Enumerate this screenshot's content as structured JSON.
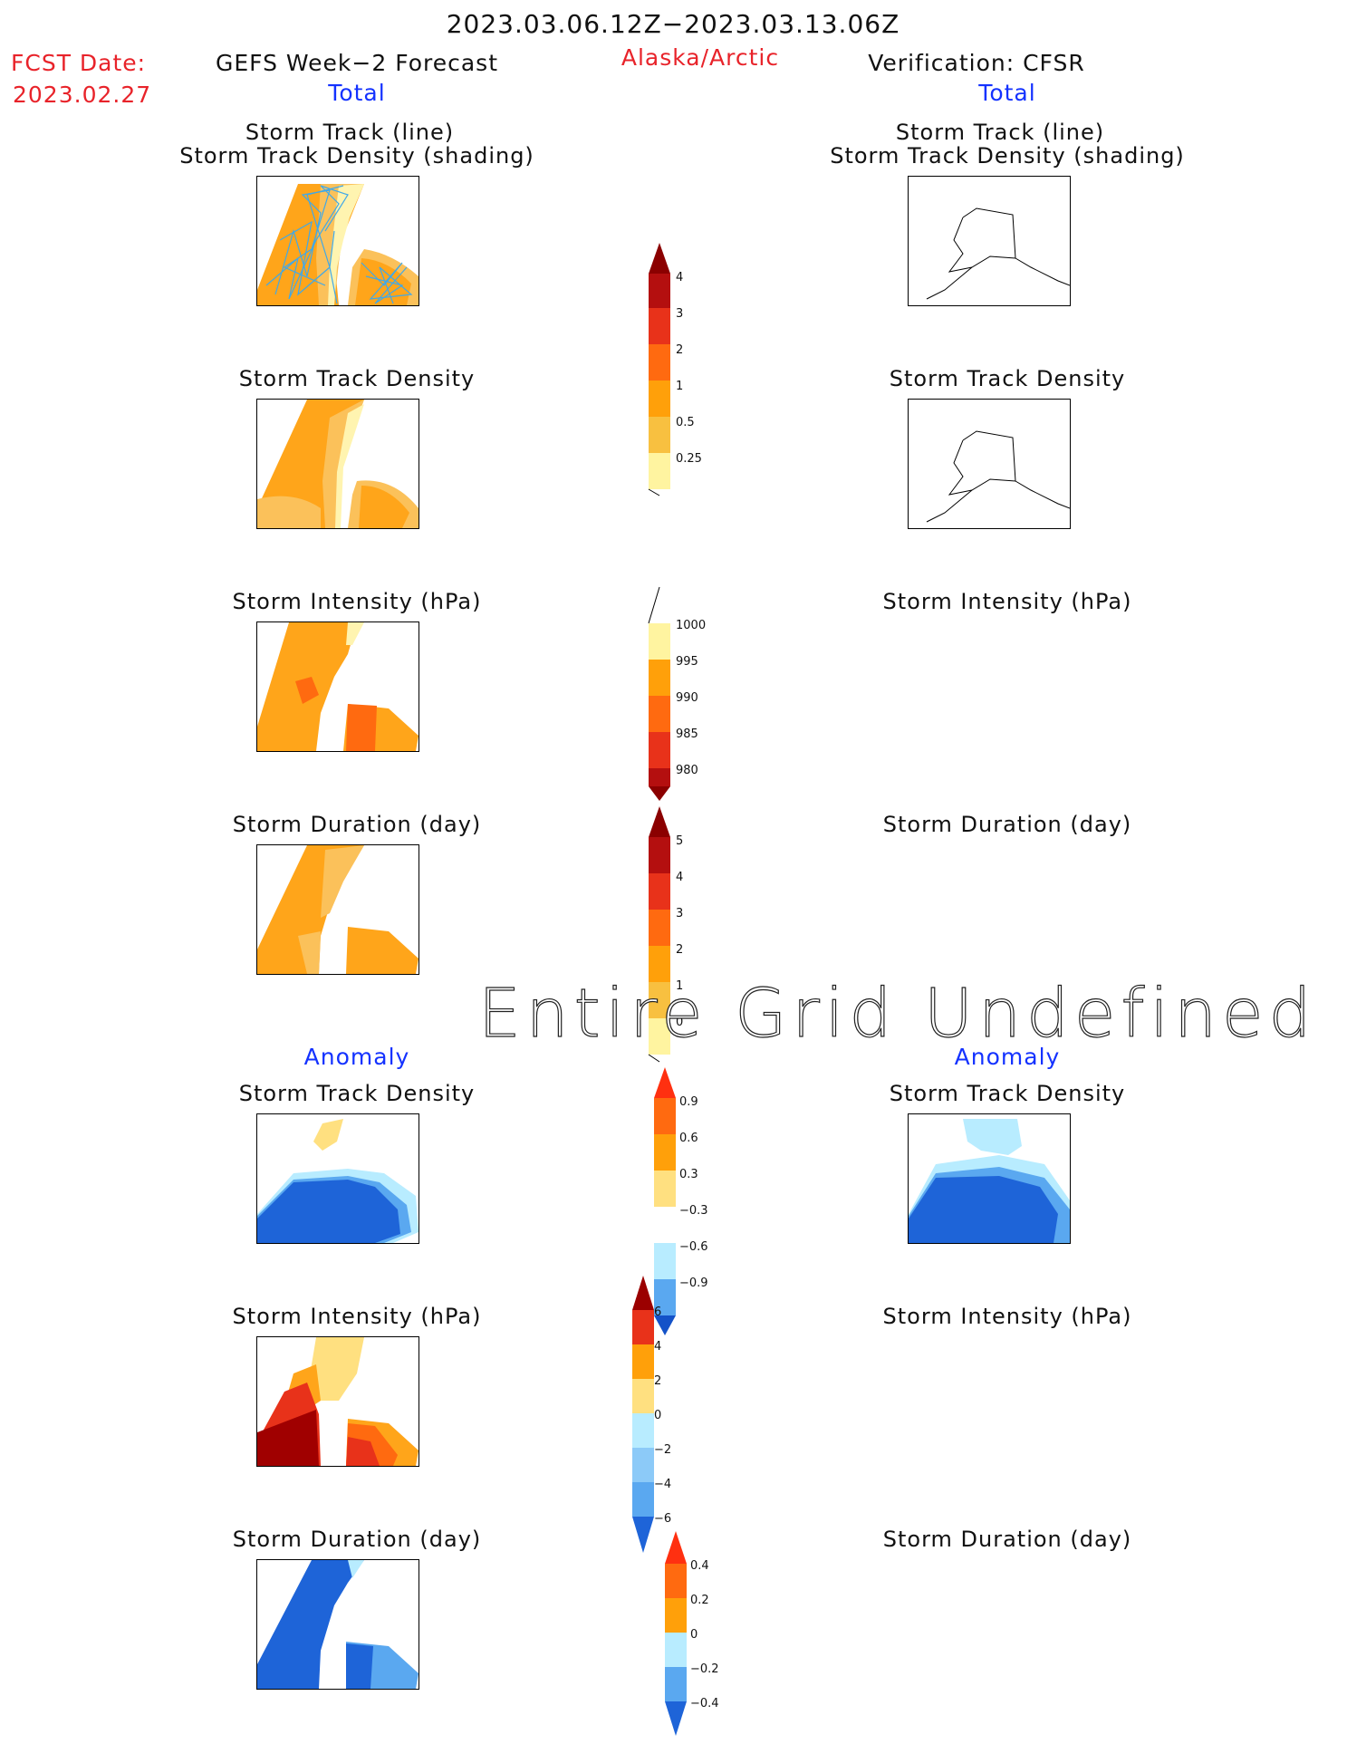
{
  "header": {
    "date_range": "2023.03.06.12Z−2023.03.13.06Z",
    "fcst_label": "FCST Date:",
    "fcst_date": "2023.02.27",
    "left_title": "GEFS Week−2 Forecast",
    "region": "Alaska/Arctic",
    "right_title": "Verification: CFSR"
  },
  "left": {
    "section_total": "Total",
    "section_anomaly": "Anomaly",
    "panels": {
      "track_title_1": "Storm Track (line)",
      "track_title_2": "Storm Track Density (shading)",
      "density": "Storm Track Density",
      "intensity": "Storm Intensity (hPa)",
      "duration": "Storm Duration (day)",
      "anom_density": "Storm Track Density",
      "anom_intensity": "Storm Intensity (hPa)",
      "anom_duration": "Storm Duration (day)"
    }
  },
  "right": {
    "section_total": "Total",
    "section_anomaly": "Anomaly",
    "panels": {
      "track_title_1": "Storm Track (line)",
      "track_title_2": "Storm Track Density (shading)",
      "density": "Storm Track Density",
      "intensity": "Storm Intensity (hPa)",
      "duration": "Storm Duration (day)",
      "anom_density": "Storm Track Density",
      "anom_intensity": "Storm Intensity (hPa)",
      "anom_duration": "Storm Duration (day)"
    }
  },
  "overlay_text": "Entire Grid Undefined",
  "colorbars": {
    "density": {
      "labels": [
        "4",
        "3",
        "2",
        "1",
        "0.5",
        "0.25"
      ],
      "colors": [
        "#b40f0f",
        "#e8321a",
        "#ff6a10",
        "#ffa00a",
        "#f8c040",
        "#fff4a0"
      ],
      "tip_top": "#8b0000"
    },
    "intensity": {
      "labels": [
        "1000",
        "995",
        "990",
        "985",
        "980"
      ],
      "colors": [
        "#fff4a0",
        "#ffa00a",
        "#ff6a10",
        "#e8321a",
        "#b40f0f"
      ],
      "tip_bottom": "#8b0000"
    },
    "duration": {
      "labels": [
        "5",
        "4",
        "3",
        "2",
        "1",
        "0"
      ],
      "colors": [
        "#b40f0f",
        "#e8321a",
        "#ff6a10",
        "#ffa00a",
        "#f8c040",
        "#fff4a0"
      ],
      "tip_top": "#8b0000"
    },
    "anom_density": {
      "labels": [
        "0.9",
        "0.6",
        "0.3",
        "−0.3",
        "−0.6",
        "−0.9"
      ],
      "colors": [
        "#ff6a10",
        "#ffa00a",
        "#ffe080",
        "#ffffff",
        "#b8ecff",
        "#5aa8f0",
        "#1e64d8"
      ],
      "tip_top": "#ff3010",
      "tip_bottom": "#1452c8"
    },
    "anom_intensity": {
      "labels": [
        "6",
        "4",
        "2",
        "0",
        "−2",
        "−4",
        "−6"
      ],
      "colors": [
        "#e8321a",
        "#ff6a10",
        "#ffa00a",
        "#ffe080",
        "#b8ecff",
        "#8ccaf8",
        "#5aa8f0",
        "#1e64d8"
      ],
      "tip_top": "#9b0000",
      "tip_bottom": "#1452c8"
    },
    "anom_duration": {
      "labels": [
        "0.4",
        "0.2",
        "0",
        "−0.2",
        "−0.4"
      ],
      "colors": [
        "#ff6a10",
        "#ffa00a",
        "#ffe080",
        "#b8ecff",
        "#5aa8f0",
        "#1e64d8"
      ],
      "tip_top": "#ff3010",
      "tip_bottom": "#1452c8"
    }
  },
  "map_fill_colors": {
    "orange": "#ffa51a",
    "light_orange": "#fbc15a",
    "pale_yellow": "#fff4b0",
    "dark_orange": "#ff6a10",
    "red_orange": "#e8321a",
    "dark_red": "#a00000",
    "dark_blue": "#1e64d8",
    "mid_blue": "#5aa8f0",
    "light_blue": "#b8ecff",
    "track_line": "#40a8e8"
  }
}
